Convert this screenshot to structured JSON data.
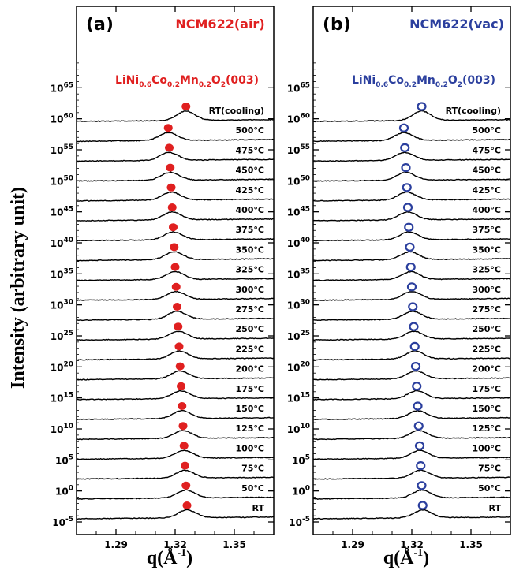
{
  "y_axis_label": "Intensity (arbitrary unit)",
  "x_axis_label_text": "q(Å",
  "x_axis_label_sup": "-1",
  "x_axis_label_close": ")",
  "chart_data": [
    {
      "type": "line",
      "panel_label": "(a)",
      "title": "NCM622(air)",
      "title_color": "#e02020",
      "marker": "filled-circle",
      "marker_color": "#e02020",
      "peak_label": {
        "prefix": "LiNi",
        "parts": [
          {
            "t": "LiNi",
            "sub": false
          },
          {
            "t": "0.6",
            "sub": true
          },
          {
            "t": "Co",
            "sub": false
          },
          {
            "t": "0.2",
            "sub": true
          },
          {
            "t": "Mn",
            "sub": false
          },
          {
            "t": "0.2",
            "sub": true
          },
          {
            "t": "O",
            "sub": false
          },
          {
            "t": "2",
            "sub": true
          },
          {
            "t": "(003)",
            "sub": false
          }
        ],
        "color": "#e02020"
      },
      "xlim": [
        1.27,
        1.37
      ],
      "x_ticks": [
        1.29,
        1.32,
        1.35
      ],
      "x_tick_labels": [
        "1.29",
        "1.32",
        "1.35"
      ],
      "y_ticks": [
        -5,
        0,
        5,
        10,
        15,
        20,
        25,
        30,
        35,
        40,
        45,
        50,
        55,
        60,
        65
      ],
      "y_tick_labels": [
        {
          "base": "10",
          "exp": "-5"
        },
        {
          "base": "10",
          "exp": "0"
        },
        {
          "base": "10",
          "exp": "5"
        },
        {
          "base": "10",
          "exp": "10"
        },
        {
          "base": "10",
          "exp": "15"
        },
        {
          "base": "10",
          "exp": "20"
        },
        {
          "base": "10",
          "exp": "25"
        },
        {
          "base": "10",
          "exp": "30"
        },
        {
          "base": "10",
          "exp": "35"
        },
        {
          "base": "10",
          "exp": "40"
        },
        {
          "base": "10",
          "exp": "45"
        },
        {
          "base": "10",
          "exp": "50"
        },
        {
          "base": "10",
          "exp": "55"
        },
        {
          "base": "10",
          "exp": "60"
        },
        {
          "base": "10",
          "exp": "65"
        }
      ],
      "y_scale": "log",
      "series": [
        {
          "label": "RT",
          "label_color": "#2b3f9e",
          "peak_q": 1.326
        },
        {
          "label": "50°C",
          "label_color": "#000000",
          "peak_q": 1.3255
        },
        {
          "label": "75°C",
          "label_color": "#000000",
          "peak_q": 1.325
        },
        {
          "label": "100°C",
          "label_color": "#000000",
          "peak_q": 1.3245
        },
        {
          "label": "125°C",
          "label_color": "#000000",
          "peak_q": 1.324
        },
        {
          "label": "150°C",
          "label_color": "#000000",
          "peak_q": 1.3235
        },
        {
          "label": "175°C",
          "label_color": "#000000",
          "peak_q": 1.323
        },
        {
          "label": "200°C",
          "label_color": "#000000",
          "peak_q": 1.3225
        },
        {
          "label": "225°C",
          "label_color": "#000000",
          "peak_q": 1.322
        },
        {
          "label": "250°C",
          "label_color": "#000000",
          "peak_q": 1.3215
        },
        {
          "label": "275°C",
          "label_color": "#000000",
          "peak_q": 1.321
        },
        {
          "label": "300°C",
          "label_color": "#000000",
          "peak_q": 1.3205
        },
        {
          "label": "325°C",
          "label_color": "#000000",
          "peak_q": 1.32
        },
        {
          "label": "350°C",
          "label_color": "#000000",
          "peak_q": 1.3195
        },
        {
          "label": "375°C",
          "label_color": "#000000",
          "peak_q": 1.319
        },
        {
          "label": "400°C",
          "label_color": "#000000",
          "peak_q": 1.3185
        },
        {
          "label": "425°C",
          "label_color": "#000000",
          "peak_q": 1.318
        },
        {
          "label": "450°C",
          "label_color": "#000000",
          "peak_q": 1.3175
        },
        {
          "label": "475°C",
          "label_color": "#000000",
          "peak_q": 1.317
        },
        {
          "label": "500°C",
          "label_color": "#000000",
          "peak_q": 1.3165
        },
        {
          "label": "RT(cooling)",
          "label_color": "#2b3f9e",
          "peak_q": 1.3255
        }
      ]
    },
    {
      "type": "line",
      "panel_label": "(b)",
      "title": "NCM622(vac)",
      "title_color": "#2b3f9e",
      "marker": "open-circle",
      "marker_color": "#2b3f9e",
      "peak_label": {
        "prefix": "LiNi",
        "parts": [
          {
            "t": "LiNi",
            "sub": false
          },
          {
            "t": "0.6",
            "sub": true
          },
          {
            "t": "Co",
            "sub": false
          },
          {
            "t": "0.2",
            "sub": true
          },
          {
            "t": "Mn",
            "sub": false
          },
          {
            "t": "0.2",
            "sub": true
          },
          {
            "t": "O",
            "sub": false
          },
          {
            "t": "2",
            "sub": true
          },
          {
            "t": "(003)",
            "sub": false
          }
        ],
        "color": "#2b3f9e"
      },
      "xlim": [
        1.27,
        1.37
      ],
      "x_ticks": [
        1.29,
        1.32,
        1.35
      ],
      "x_tick_labels": [
        "1.29",
        "1.32",
        "1.35"
      ],
      "y_ticks": [
        -5,
        0,
        5,
        10,
        15,
        20,
        25,
        30,
        35,
        40,
        45,
        50,
        55,
        60,
        65
      ],
      "y_tick_labels": [
        {
          "base": "10",
          "exp": "-5"
        },
        {
          "base": "10",
          "exp": "0"
        },
        {
          "base": "10",
          "exp": "5"
        },
        {
          "base": "10",
          "exp": "10"
        },
        {
          "base": "10",
          "exp": "15"
        },
        {
          "base": "10",
          "exp": "20"
        },
        {
          "base": "10",
          "exp": "25"
        },
        {
          "base": "10",
          "exp": "30"
        },
        {
          "base": "10",
          "exp": "35"
        },
        {
          "base": "10",
          "exp": "40"
        },
        {
          "base": "10",
          "exp": "45"
        },
        {
          "base": "10",
          "exp": "50"
        },
        {
          "base": "10",
          "exp": "55"
        },
        {
          "base": "10",
          "exp": "60"
        },
        {
          "base": "10",
          "exp": "65"
        }
      ],
      "y_scale": "log",
      "series": [
        {
          "label": "RT",
          "label_color": "#2b3f9e",
          "peak_q": 1.3255
        },
        {
          "label": "50°C",
          "label_color": "#000000",
          "peak_q": 1.325
        },
        {
          "label": "75°C",
          "label_color": "#000000",
          "peak_q": 1.3245
        },
        {
          "label": "100°C",
          "label_color": "#000000",
          "peak_q": 1.324
        },
        {
          "label": "125°C",
          "label_color": "#000000",
          "peak_q": 1.3235
        },
        {
          "label": "150°C",
          "label_color": "#000000",
          "peak_q": 1.323
        },
        {
          "label": "175°C",
          "label_color": "#000000",
          "peak_q": 1.3225
        },
        {
          "label": "200°C",
          "label_color": "#000000",
          "peak_q": 1.322
        },
        {
          "label": "225°C",
          "label_color": "#000000",
          "peak_q": 1.3215
        },
        {
          "label": "250°C",
          "label_color": "#000000",
          "peak_q": 1.321
        },
        {
          "label": "275°C",
          "label_color": "#000000",
          "peak_q": 1.3205
        },
        {
          "label": "300°C",
          "label_color": "#000000",
          "peak_q": 1.32
        },
        {
          "label": "325°C",
          "label_color": "#000000",
          "peak_q": 1.3195
        },
        {
          "label": "350°C",
          "label_color": "#000000",
          "peak_q": 1.319
        },
        {
          "label": "375°C",
          "label_color": "#000000",
          "peak_q": 1.3185
        },
        {
          "label": "400°C",
          "label_color": "#000000",
          "peak_q": 1.318
        },
        {
          "label": "425°C",
          "label_color": "#000000",
          "peak_q": 1.3175
        },
        {
          "label": "450°C",
          "label_color": "#000000",
          "peak_q": 1.317
        },
        {
          "label": "475°C",
          "label_color": "#000000",
          "peak_q": 1.3165
        },
        {
          "label": "500°C",
          "label_color": "#000000",
          "peak_q": 1.316
        },
        {
          "label": "RT(cooling)",
          "label_color": "#2b3f9e",
          "peak_q": 1.325
        }
      ]
    }
  ]
}
